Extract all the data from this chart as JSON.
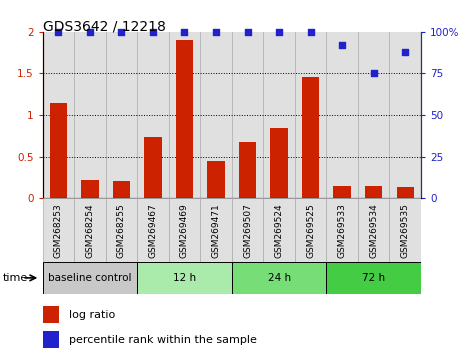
{
  "title": "GDS3642 / 12218",
  "categories": [
    "GSM268253",
    "GSM268254",
    "GSM268255",
    "GSM269467",
    "GSM269469",
    "GSM269471",
    "GSM269507",
    "GSM269524",
    "GSM269525",
    "GSM269533",
    "GSM269534",
    "GSM269535"
  ],
  "log_ratio": [
    1.15,
    0.22,
    0.21,
    0.74,
    1.9,
    0.45,
    0.68,
    0.85,
    1.46,
    0.15,
    0.15,
    0.14
  ],
  "percentile_rank": [
    100,
    100,
    100,
    100,
    100,
    100,
    100,
    100,
    100,
    92,
    75,
    88
  ],
  "bar_color": "#cc2200",
  "dot_color": "#2222cc",
  "ylim_left": [
    0,
    2
  ],
  "ylim_right": [
    0,
    100
  ],
  "yticks_left": [
    0,
    0.5,
    1.0,
    1.5,
    2.0
  ],
  "ytick_labels_left": [
    "0",
    "0.5",
    "1",
    "1.5",
    "2"
  ],
  "yticks_right": [
    0,
    25,
    50,
    75,
    100
  ],
  "ytick_labels_right": [
    "0",
    "25",
    "50",
    "75",
    "100%"
  ],
  "dotted_lines": [
    0.5,
    1.0,
    1.5
  ],
  "time_groups": [
    {
      "label": "baseline control",
      "start": 0,
      "end": 3,
      "color": "#c8c8c8"
    },
    {
      "label": "12 h",
      "start": 3,
      "end": 6,
      "color": "#aaeaaa"
    },
    {
      "label": "24 h",
      "start": 6,
      "end": 9,
      "color": "#77dd77"
    },
    {
      "label": "72 h",
      "start": 9,
      "end": 12,
      "color": "#44cc44"
    }
  ],
  "legend_label_ratio": "log ratio",
  "legend_label_pct": "percentile rank within the sample",
  "time_label": "time",
  "col_bg_color": "#e0e0e0",
  "col_border_color": "#aaaaaa",
  "white": "#ffffff"
}
